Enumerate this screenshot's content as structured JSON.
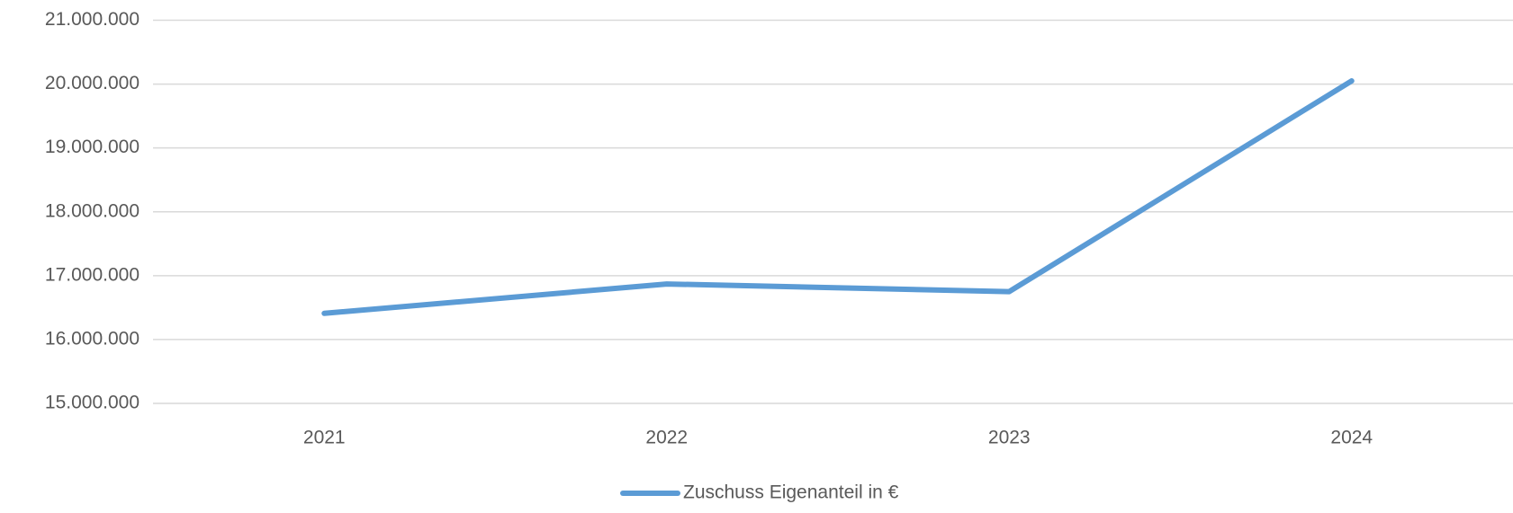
{
  "chart_data": {
    "type": "line",
    "categories": [
      "2021",
      "2022",
      "2023",
      "2024"
    ],
    "series": [
      {
        "name": "Zuschuss Eigenanteil in €",
        "color": "#5b9bd5",
        "values": [
          16410000,
          16870000,
          16750000,
          20050000
        ]
      }
    ],
    "ylim": [
      15000000,
      21000000
    ],
    "yticks": [
      {
        "value": 15000000,
        "label": "15.000.000"
      },
      {
        "value": 16000000,
        "label": "16.000.000"
      },
      {
        "value": 17000000,
        "label": "17.000.000"
      },
      {
        "value": 18000000,
        "label": "18.000.000"
      },
      {
        "value": 19000000,
        "label": "19.000.000"
      },
      {
        "value": 20000000,
        "label": "20.000.000"
      },
      {
        "value": 21000000,
        "label": "21.000.000"
      }
    ],
    "grid": true,
    "legend": "bottom"
  }
}
